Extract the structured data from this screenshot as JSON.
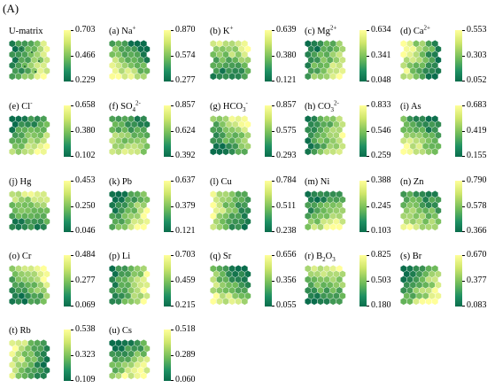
{
  "figure_label": "(A)",
  "colormap": {
    "low": "#0a6d4c",
    "mid": "#6fbb5a",
    "high": "#ffff99"
  },
  "panels": [
    {
      "id": "umatrix",
      "title": "U-matrix",
      "max": "0.703",
      "mid": "0.466",
      "min": "0.229"
    },
    {
      "id": "na",
      "title": "(a) Na",
      "sup": "+",
      "max": "0.870",
      "mid": "0.574",
      "min": "0.277"
    },
    {
      "id": "k",
      "title": "(b) K",
      "sup": "+",
      "max": "0.639",
      "mid": "0.380",
      "min": "0.121"
    },
    {
      "id": "mg",
      "title": "(c) Mg",
      "sup": "2+",
      "max": "0.634",
      "mid": "0.341",
      "min": "0.048"
    },
    {
      "id": "ca",
      "title": "(d) Ca",
      "sup": "2+",
      "max": "0.553",
      "mid": "0.303",
      "min": "0.052"
    },
    {
      "id": "cl",
      "title": "(e) Cl",
      "sup": "-",
      "max": "0.658",
      "mid": "0.380",
      "min": "0.102"
    },
    {
      "id": "so4",
      "title": "(f) SO",
      "sub": "4",
      "sup": "2-",
      "max": "0.857",
      "mid": "0.624",
      "min": "0.392"
    },
    {
      "id": "hco3",
      "title": "(g) HCO",
      "sub": "3",
      "sup": "-",
      "max": "0.857",
      "mid": "0.575",
      "min": "0.293"
    },
    {
      "id": "co2",
      "title": "(h) CO",
      "sub": "3",
      "sup": "2-",
      "max": "0.833",
      "mid": "0.546",
      "min": "0.259"
    },
    {
      "id": "as",
      "title": "(i) As",
      "max": "0.683",
      "mid": "0.419",
      "min": "0.155"
    },
    {
      "id": "hg",
      "title": "(j) Hg",
      "max": "0.453",
      "mid": "0.250",
      "min": "0.046"
    },
    {
      "id": "pb",
      "title": "(k) Pb",
      "max": "0.637",
      "mid": "0.379",
      "min": "0.121"
    },
    {
      "id": "cu",
      "title": "(l) Cu",
      "max": "0.784",
      "mid": "0.511",
      "min": "0.238"
    },
    {
      "id": "ni",
      "title": "(m) Ni",
      "max": "0.388",
      "mid": "0.245",
      "min": "0.103"
    },
    {
      "id": "zn",
      "title": "(n) Zn",
      "max": "0.790",
      "mid": "0.578",
      "min": "0.366"
    },
    {
      "id": "cr",
      "title": "(o) Cr",
      "max": "0.484",
      "mid": "0.277",
      "min": "0.069"
    },
    {
      "id": "li",
      "title": "(p) Li",
      "max": "0.703",
      "mid": "0.459",
      "min": "0.215"
    },
    {
      "id": "sr",
      "title": "(q) Sr",
      "max": "0.656",
      "mid": "0.356",
      "min": "0.055"
    },
    {
      "id": "b2o3",
      "title": "(r) B",
      "sub": "2",
      "title2": "O",
      "sub2": "3",
      "max": "0.825",
      "mid": "0.503",
      "min": "0.180"
    },
    {
      "id": "br",
      "title": "(s) Br",
      "max": "0.670",
      "mid": "0.377",
      "min": "0.083"
    },
    {
      "id": "rb",
      "title": "(t) Rb",
      "max": "0.538",
      "mid": "0.323",
      "min": "0.109"
    },
    {
      "id": "cs",
      "title": "(u) Cs",
      "max": "0.518",
      "mid": "0.289",
      "min": "0.060"
    }
  ]
}
